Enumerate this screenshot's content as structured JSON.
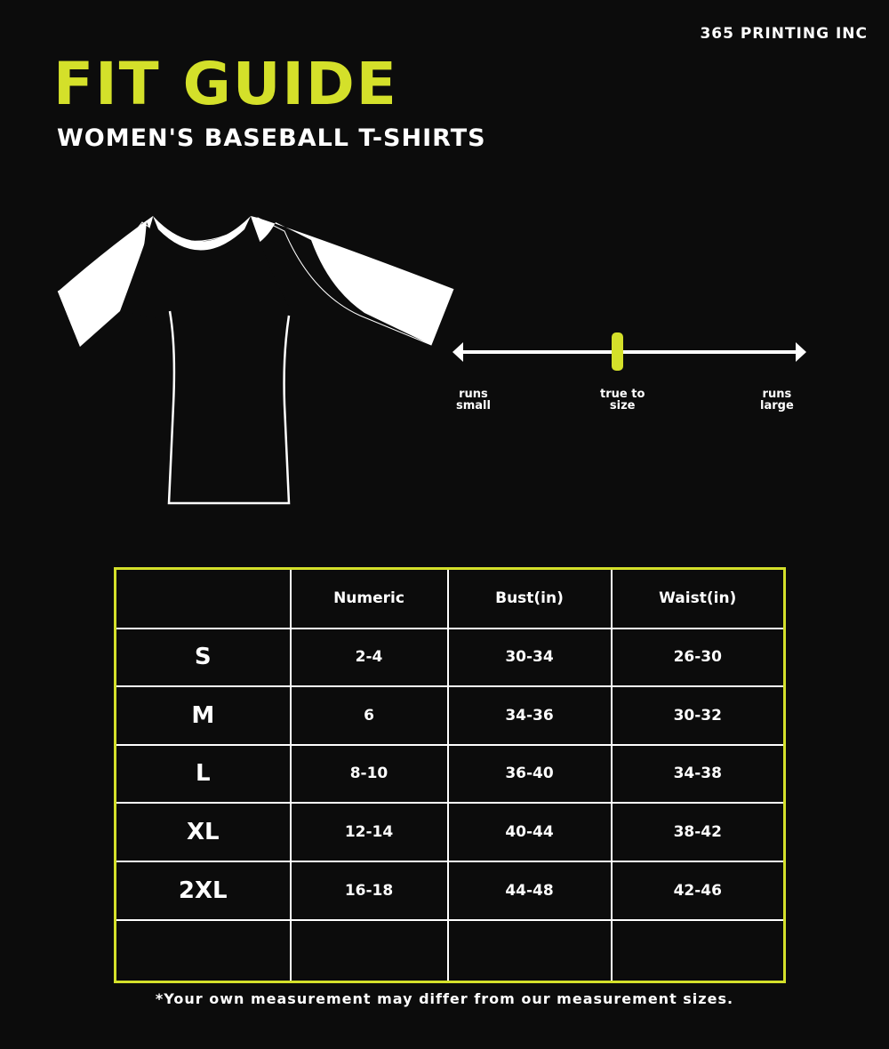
{
  "brand": "365 PRINTING INC",
  "title": "FIT GUIDE",
  "subtitle": "WOMEN'S BASEBALL T-SHIRTS",
  "accent_color": "#d4e02a",
  "fit_scale": {
    "left_label": [
      "runs",
      "small"
    ],
    "center_label": [
      "true to",
      "size"
    ],
    "right_label": [
      "runs",
      "large"
    ],
    "position": 0.5
  },
  "table": {
    "headers": [
      "",
      "Numeric",
      "Bust(in)",
      "Waist(in)"
    ],
    "rows": [
      [
        "S",
        "2-4",
        "30-34",
        "26-30"
      ],
      [
        "M",
        "6",
        "34-36",
        "30-32"
      ],
      [
        "L",
        "8-10",
        "36-40",
        "34-38"
      ],
      [
        "XL",
        "12-14",
        "40-44",
        "38-42"
      ],
      [
        "2XL",
        "16-18",
        "44-48",
        "42-46"
      ],
      [
        "",
        "",
        "",
        ""
      ]
    ]
  },
  "footnote": "*Your own measurement may differ from our measurement sizes."
}
